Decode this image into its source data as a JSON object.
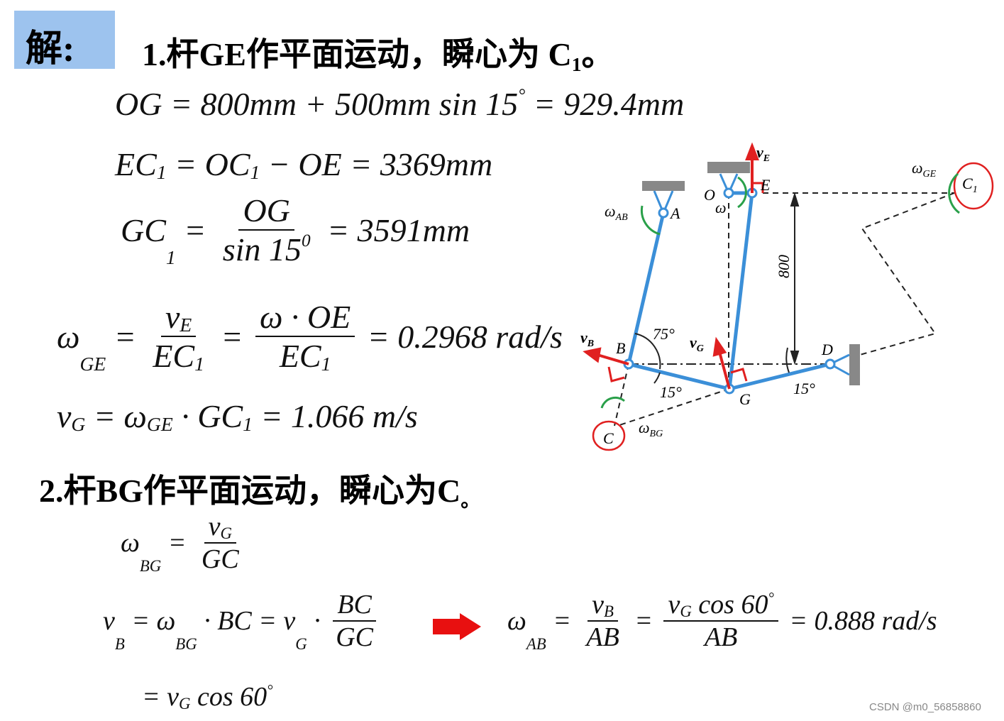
{
  "badge": "解:",
  "heading1": [
    "1.杆GE作平面运动，瞬心为 C",
    "1",
    "。"
  ],
  "eq1": [
    "OG = 800mm + 500mm sin 15",
    "°",
    " = 929.4mm"
  ],
  "eq2": [
    "EC",
    "1",
    " = OC",
    "1",
    " − OE = 3369mm"
  ],
  "eq3": [
    "GC",
    "1",
    " = ",
    "OG",
    "sin 15",
    "0",
    " = 3591mm"
  ],
  "eq4": [
    "ω",
    "GE",
    " = ",
    "v",
    "E",
    "EC",
    "1",
    " = ",
    "ω · OE",
    "EC",
    "1",
    " = 0.2968 rad/s"
  ],
  "eq5": [
    "v",
    "G",
    " = ω",
    "GE",
    " · GC",
    "1",
    " = 1.066 m/s"
  ],
  "heading2": [
    "2.杆BG作平面运动，瞬心为C",
    "。"
  ],
  "eq6": [
    "ω",
    "BG",
    " = ",
    "v",
    "G",
    "GC"
  ],
  "eq7": [
    "v",
    "B",
    " = ω",
    "BG",
    " · BC = v",
    "G",
    " · ",
    "BC",
    "GC"
  ],
  "eq8": [
    "ω",
    "AB",
    " = ",
    "v",
    "B",
    "AB",
    " = ",
    "v",
    "G",
    " cos 60",
    "°",
    "AB",
    " = 0.888 rad/s"
  ],
  "eq9": [
    "= v",
    "G",
    " cos 60",
    "°"
  ],
  "diagram": {
    "labels": [
      [
        "v",
        "E"
      ],
      [
        "O"
      ],
      [
        "E"
      ],
      [
        "ω"
      ],
      [
        "ω",
        "AB"
      ],
      [
        "A"
      ],
      [
        "ω",
        "GE"
      ],
      [
        "C",
        "1"
      ],
      [
        "800"
      ],
      [
        "v",
        "B"
      ],
      [
        "B"
      ],
      [
        "75°"
      ],
      [
        "v",
        "G"
      ],
      [
        "D"
      ],
      [
        "15°"
      ],
      [
        "15°"
      ],
      [
        "G"
      ],
      [
        "C"
      ],
      [
        "ω",
        "BG"
      ]
    ]
  },
  "watermark": "CSDN @m0_56858860"
}
